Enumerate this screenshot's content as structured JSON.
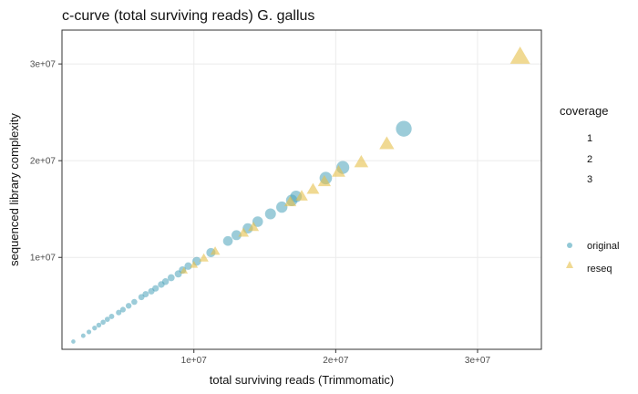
{
  "chart_data": {
    "type": "scatter",
    "title": "c-curve (total surviving reads) G. gallus",
    "xlabel": "total surviving reads (Trimmomatic)",
    "ylabel": "sequenced library complexity",
    "xlim": [
      700000,
      34500000
    ],
    "ylim": [
      500000,
      33500000
    ],
    "x_ticks": [
      10000000,
      20000000,
      30000000
    ],
    "x_tick_labels": [
      "1e+07",
      "2e+07",
      "3e+07"
    ],
    "y_ticks": [
      10000000,
      20000000,
      30000000
    ],
    "y_tick_labels": [
      "1e+07",
      "2e+07",
      "3e+07"
    ],
    "grid": true,
    "legend_position": "right",
    "size_legend": {
      "title": "coverage",
      "labels": [
        "1",
        "2",
        "3"
      ]
    },
    "series_legend": {
      "labels": [
        "original",
        "reseq"
      ]
    },
    "colors": {
      "original": "#4aa3ba",
      "reseq": "#e6c04a"
    },
    "series": [
      {
        "name": "original",
        "shape": "circle",
        "points": [
          [
            1500000,
            1300000
          ],
          [
            2200000,
            1900000
          ],
          [
            2600000,
            2300000
          ],
          [
            3000000,
            2700000
          ],
          [
            3300000,
            3000000
          ],
          [
            3600000,
            3300000
          ],
          [
            3900000,
            3600000
          ],
          [
            4200000,
            3900000
          ],
          [
            4700000,
            4300000
          ],
          [
            5000000,
            4600000
          ],
          [
            5400000,
            5000000
          ],
          [
            5800000,
            5400000
          ],
          [
            6300000,
            5900000
          ],
          [
            6600000,
            6200000
          ],
          [
            7000000,
            6500000
          ],
          [
            7300000,
            6800000
          ],
          [
            7700000,
            7200000
          ],
          [
            8000000,
            7500000
          ],
          [
            8400000,
            7900000
          ],
          [
            8900000,
            8300000
          ],
          [
            9200000,
            8700000
          ],
          [
            9600000,
            9100000
          ],
          [
            10200000,
            9600000
          ],
          [
            11200000,
            10500000
          ],
          [
            12400000,
            11700000
          ],
          [
            13000000,
            12300000
          ],
          [
            13800000,
            13000000
          ],
          [
            14500000,
            13700000
          ],
          [
            15400000,
            14500000
          ],
          [
            16200000,
            15200000
          ],
          [
            16900000,
            15900000
          ],
          [
            17200000,
            16300000
          ],
          [
            19300000,
            18200000
          ],
          [
            20500000,
            19300000
          ],
          [
            24800000,
            23300000
          ]
        ],
        "sizes": [
          1,
          1,
          1,
          1,
          1,
          1,
          1,
          1,
          1,
          1,
          1,
          1,
          1,
          1,
          1,
          1,
          1,
          1,
          1,
          1,
          1,
          1,
          2,
          2,
          2,
          2,
          2,
          2,
          2,
          2,
          2,
          2,
          2,
          2,
          3
        ]
      },
      {
        "name": "reseq",
        "shape": "triangle",
        "points": [
          [
            9300000,
            8600000
          ],
          [
            10000000,
            9200000
          ],
          [
            10700000,
            9900000
          ],
          [
            11500000,
            10600000
          ],
          [
            13500000,
            12500000
          ],
          [
            14200000,
            13100000
          ],
          [
            16800000,
            15700000
          ],
          [
            17600000,
            16300000
          ],
          [
            18400000,
            17000000
          ],
          [
            19200000,
            17800000
          ],
          [
            20200000,
            18800000
          ],
          [
            21800000,
            19800000
          ],
          [
            23600000,
            21700000
          ],
          [
            33000000,
            30700000
          ]
        ],
        "sizes": [
          1,
          1,
          2,
          2,
          2,
          2,
          2,
          2,
          2,
          2,
          2,
          2,
          2,
          3
        ]
      }
    ]
  }
}
